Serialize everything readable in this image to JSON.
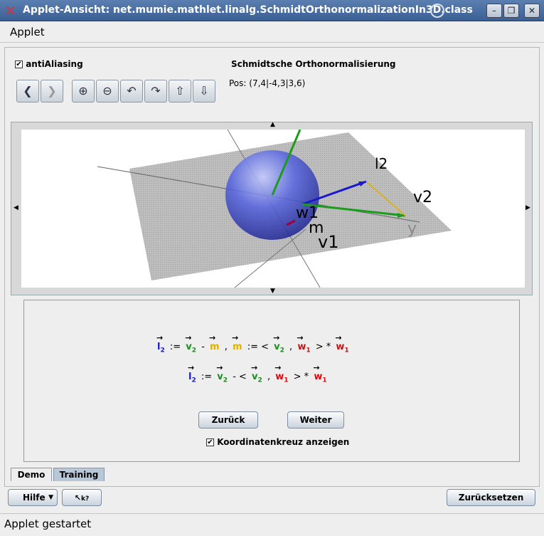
{
  "window": {
    "title": "Applet-Ansicht: net.mumie.mathlet.linalg.SchmidtOrthonormalizationIn3D.class",
    "minimize_icon": "minimize-icon",
    "maximize_icon": "maximize-icon",
    "close_icon": "close-icon"
  },
  "menu": {
    "applet": "Applet"
  },
  "controls": {
    "antialiasing_label": "antiAliasing",
    "antialiasing_checked": true,
    "heading": "Schmidtsche Orthonormalisierung",
    "position": "Pos: (7,4|-4,3|3,6)",
    "toolbar_icons": [
      "back-icon",
      "forward-icon",
      "zoom-in-icon",
      "zoom-out-icon",
      "rotate-left-icon",
      "rotate-right-icon",
      "rotate-up-icon",
      "rotate-down-icon"
    ]
  },
  "scene": {
    "labels": {
      "l2": "l2",
      "v2": "v2",
      "w1": "w1",
      "m": "m",
      "v1": "v1",
      "y": "y"
    },
    "colors": {
      "l2": "#1a1acc",
      "v2": "#1c8c1c",
      "m": "#e0b000",
      "w1": "#d01010",
      "sphere": "#3f4fd8",
      "plane": "#a8a8a8"
    }
  },
  "formulas": {
    "line1": {
      "l": "l",
      "l_sub": "2",
      "assign": ":=",
      "v": "v",
      "v_sub": "2",
      "minus": "-",
      "m": "m",
      "comma1": ",",
      "m2": "m",
      "assign2": ":= <",
      "v2": "v",
      "v2_sub": "2",
      "comma2": ",",
      "w": "w",
      "w_sub": "1",
      "close": "> *",
      "w2": "w",
      "w2_sub": "1"
    },
    "line2": {
      "l": "l",
      "l_sub": "2",
      "assign": ":=",
      "v": "v",
      "v_sub": "2",
      "minus": "- <",
      "v2": "v",
      "v2_sub": "2",
      "comma": ",",
      "w": "w",
      "w_sub": "1",
      "close": "> *",
      "w2": "w",
      "w2_sub": "1"
    }
  },
  "buttons": {
    "back": "Zurück",
    "next": "Weiter",
    "show_axes": "Koordinatenkreuz anzeigen",
    "show_axes_checked": true
  },
  "tabs": {
    "demo": "Demo",
    "training": "Training"
  },
  "bottom": {
    "help": "Hilfe",
    "context_help": "k?",
    "reset": "Zurücksetzen"
  },
  "status": "Applet gestartet"
}
